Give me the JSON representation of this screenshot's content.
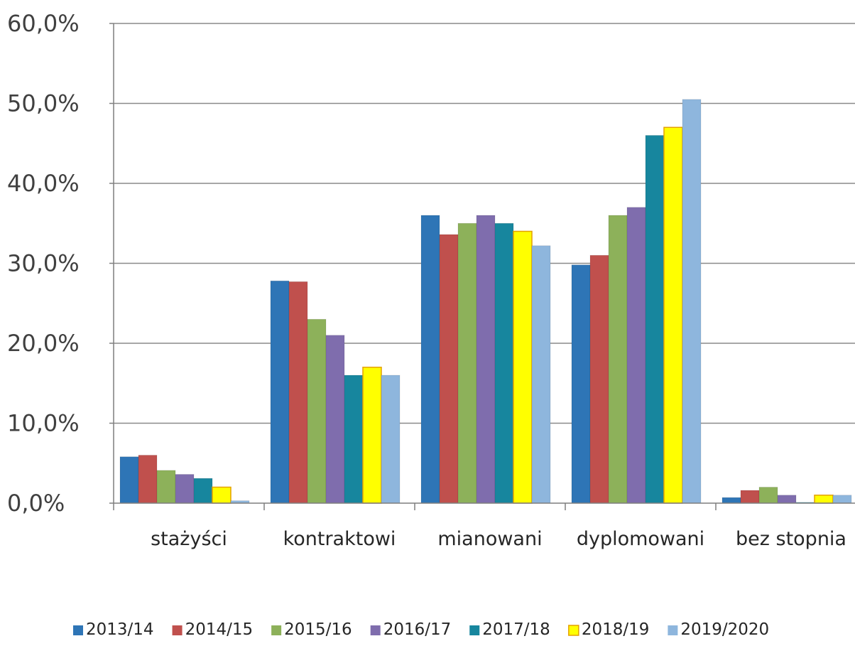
{
  "chart_data": {
    "type": "bar",
    "title": "",
    "xlabel": "",
    "ylabel": "",
    "ylim": [
      0,
      60
    ],
    "y_tick_values": [
      0,
      10,
      20,
      30,
      40,
      50,
      60
    ],
    "y_tick_labels": [
      "0,0%",
      "10,0%",
      "20,0%",
      "30,0%",
      "40,0%",
      "50,0%",
      "60,0%"
    ],
    "grid": true,
    "legend_position": "bottom",
    "categories": [
      "stażyści",
      "kontraktowi",
      "mianowani",
      "dyplomowani",
      "bez stopnia"
    ],
    "series": [
      {
        "name": "2013/14",
        "color": "#2e75b6",
        "values": [
          5.8,
          27.8,
          36.0,
          29.8,
          0.7
        ]
      },
      {
        "name": "2014/15",
        "color": "#c0504d",
        "values": [
          6.0,
          27.7,
          33.6,
          31.0,
          1.6
        ]
      },
      {
        "name": "2015/16",
        "color": "#8db15a",
        "values": [
          4.1,
          23.0,
          35.0,
          36.0,
          2.0
        ]
      },
      {
        "name": "2016/17",
        "color": "#7f6dad",
        "values": [
          3.6,
          21.0,
          36.0,
          37.0,
          1.0
        ]
      },
      {
        "name": "2017/18",
        "color": "#17869e",
        "values": [
          3.1,
          16.0,
          35.0,
          46.0,
          0.1
        ]
      },
      {
        "name": "2018/19",
        "color": "#ffff00",
        "values": [
          2.0,
          17.0,
          34.0,
          47.0,
          1.0
        ]
      },
      {
        "name": "2019/2020",
        "color": "#8eb6dd",
        "values": [
          0.3,
          16.0,
          32.2,
          50.5,
          1.0
        ]
      }
    ]
  }
}
